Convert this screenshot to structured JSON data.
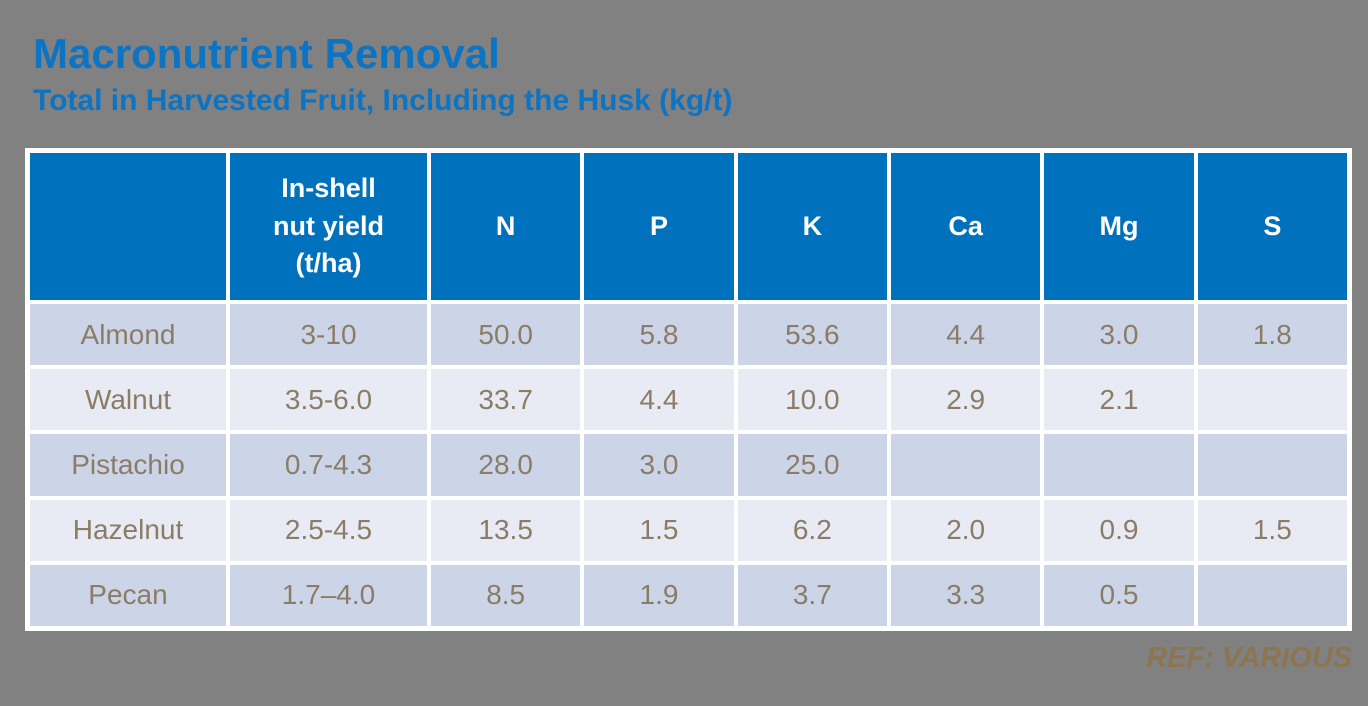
{
  "slide": {
    "title": "Macronutrient Removal",
    "subtitle": "Total in Harvested Fruit, Including the Husk (kg/t)",
    "ref_note": "REF: VARIOUS"
  },
  "colors": {
    "background_gray": "#818181",
    "title_blue": "#0d74c4",
    "header_fill_blue": "#0071bc",
    "header_text": "#ffffff",
    "row_fill_light": "#ccd5e8",
    "row_fill_lighter": "#e8ebf4",
    "cell_text_taupe": "#8b7c67",
    "ref_text_tan": "#8c7550",
    "grid_lines": "#ffffff"
  },
  "chart_data": {
    "type": "table",
    "title": "Macronutrient Removal",
    "subtitle": "Total in Harvested Fruit, Including the Husk (kg/t)",
    "columns": [
      "",
      "In-shell\nnut yield\n(t/ha)",
      "N",
      "P",
      "K",
      "Ca",
      "Mg",
      "S"
    ],
    "rows": [
      {
        "label": "Almond",
        "values": [
          "3-10",
          "50.0",
          "5.8",
          "53.6",
          "4.4",
          "3.0",
          "1.8"
        ]
      },
      {
        "label": "Walnut",
        "values": [
          "3.5-6.0",
          "33.7",
          "4.4",
          "10.0",
          "2.9",
          "2.1",
          ""
        ]
      },
      {
        "label": "Pistachio",
        "values": [
          "0.7-4.3",
          "28.0",
          "3.0",
          "25.0",
          "",
          "",
          ""
        ]
      },
      {
        "label": "Hazelnut",
        "values": [
          "2.5-4.5",
          "13.5",
          "1.5",
          "6.2",
          "2.0",
          "0.9",
          "1.5"
        ]
      },
      {
        "label": "Pecan",
        "values": [
          "1.7–4.0",
          "8.5",
          "1.9",
          "3.7",
          "3.3",
          "0.5",
          ""
        ]
      }
    ]
  }
}
